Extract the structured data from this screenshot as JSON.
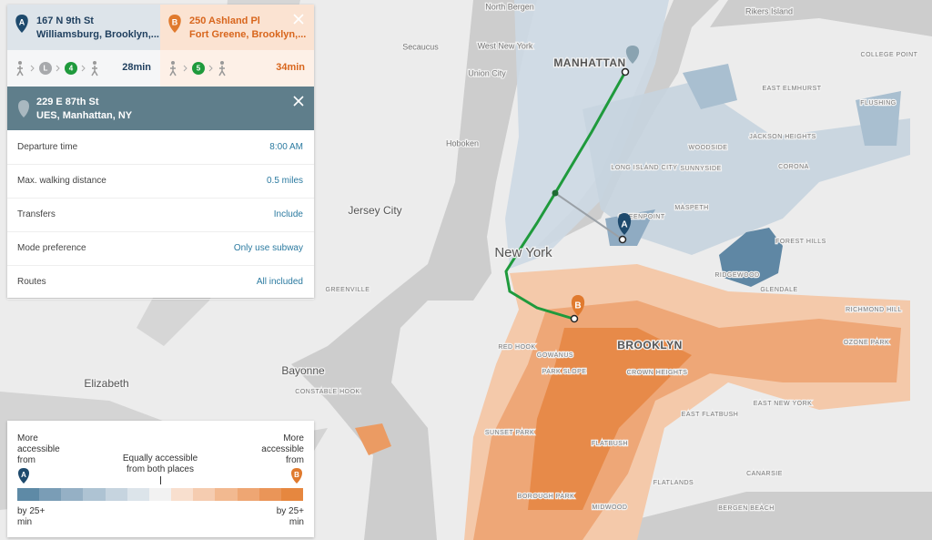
{
  "origin_a": {
    "badge": "A",
    "line1": "167 N 9th St",
    "line2": "Williamsburg, Brooklyn,...",
    "lines": [
      "L",
      "4"
    ],
    "time": "28min"
  },
  "origin_b": {
    "badge": "B",
    "line1": "250 Ashland Pl",
    "line2": "Fort Greene, Brooklyn,...",
    "lines": [
      "5"
    ],
    "time": "34min"
  },
  "destination": {
    "line1": "229 E 87th St",
    "line2": "UES, Manhattan, NY"
  },
  "settings": [
    {
      "label": "Departure time",
      "value": "8:00 AM"
    },
    {
      "label": "Max. walking distance",
      "value": "0.5 miles"
    },
    {
      "label": "Transfers",
      "value": "Include"
    },
    {
      "label": "Mode preference",
      "value": "Only use subway"
    },
    {
      "label": "Routes",
      "value": "All included"
    }
  ],
  "legend": {
    "left": "More accessible from",
    "left_badge": "A",
    "center": "Equally accessible from both places",
    "right": "More accessible from",
    "right_badge": "B",
    "left_sub": "by 25+ min",
    "right_sub": "by 25+ min",
    "colors": [
      "#5e8aa6",
      "#7a9db6",
      "#95b0c5",
      "#aec3d3",
      "#c6d4df",
      "#dce4ea",
      "#f2f2f2",
      "#f8dfce",
      "#f5ccb0",
      "#f2b990",
      "#eea673",
      "#ea9558",
      "#e6873f"
    ]
  },
  "map_labels": [
    "North Bergen",
    "Secaucus",
    "West New York",
    "Union City",
    "MANHATTAN",
    "Hoboken",
    "Jersey City",
    "New York",
    "BROOKLYN",
    "Bayonne",
    "Elizabeth",
    "Rikers Island",
    "EAST ELMHURST",
    "JACKSON HEIGHTS",
    "CORONA",
    "WOODSIDE",
    "SUNNYSIDE",
    "LONG ISLAND CITY",
    "MASPETH",
    "GREENPOINT",
    "RIDGEWOOD",
    "GLENDALE",
    "FOREST HILLS",
    "FLUSHING",
    "RED HOOK",
    "GOWANUS",
    "PARK SLOPE",
    "CROWN HEIGHTS",
    "EAST NEW YORK",
    "EAST FLATBUSH",
    "FLATBUSH",
    "SUNSET PARK",
    "BOROUGH PARK",
    "MIDWOOD",
    "FLATLANDS",
    "CANARSIE",
    "BERGEN BEACH",
    "OZONE PARK",
    "RICHMOND HILL",
    "COLLEGE POINT",
    "GREENVILLE",
    "CONSTABLE HOOK"
  ]
}
